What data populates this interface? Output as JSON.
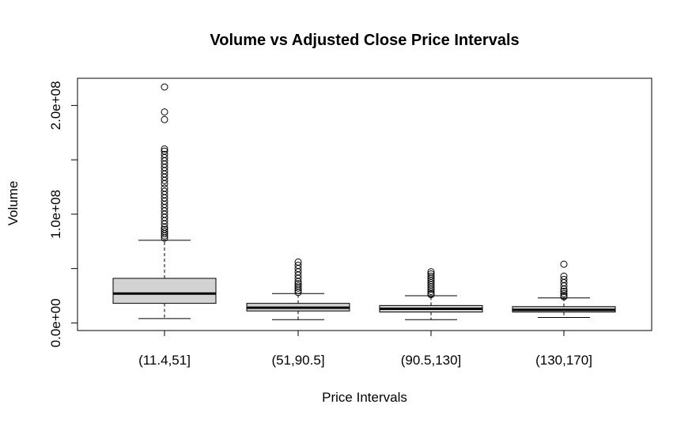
{
  "chart_data": {
    "type": "boxplot",
    "title": "Volume vs Adjusted Close Price Intervals",
    "xlabel": "Price Intervals",
    "ylabel": "Volume",
    "categories": [
      "(11.4,51]",
      "(51,90.5]",
      "(90.5,130]",
      "(130,170]"
    ],
    "y_ticks": [
      0,
      100000000,
      200000000
    ],
    "y_tick_labels": [
      "0.0e+00",
      "1.0e+08",
      "2.0e+08"
    ],
    "y_minor_ticks": [
      50000000,
      150000000
    ],
    "ylim": [
      -7000000,
      225000000
    ],
    "grid": false,
    "legend": "none",
    "colors": {
      "box_fill": "#d3d3d3",
      "stroke": "#000000"
    },
    "boxes": [
      {
        "category": "(11.4,51]",
        "whisker_low": 4000000,
        "q1": 18000000,
        "median": 27000000,
        "q3": 41000000,
        "whisker_high": 76000000,
        "outliers": [
          217000000,
          194000000,
          187000000,
          160000000,
          158000000,
          155000000,
          152000000,
          149000000,
          146000000,
          143000000,
          140000000,
          137000000,
          134000000,
          131000000,
          128000000,
          124000000,
          121000000,
          118000000,
          115000000,
          112000000,
          109000000,
          106000000,
          103000000,
          100000000,
          97000000,
          94000000,
          91000000,
          88000000,
          86000000,
          84000000,
          82000000,
          80000000,
          78000000
        ]
      },
      {
        "category": "(51,90.5]",
        "whisker_low": 3000000,
        "q1": 11000000,
        "median": 14000000,
        "q3": 18000000,
        "whisker_high": 27000000,
        "outliers": [
          56000000,
          53000000,
          50000000,
          47000000,
          44000000,
          41000000,
          38000000,
          36000000,
          34000000,
          32000000,
          30000000,
          28000000
        ]
      },
      {
        "category": "(90.5,130]",
        "whisker_low": 3000000,
        "q1": 10000000,
        "median": 13000000,
        "q3": 16000000,
        "whisker_high": 25000000,
        "outliers": [
          47000000,
          45000000,
          43000000,
          41000000,
          39000000,
          37000000,
          35000000,
          33000000,
          31000000,
          29000000,
          27000000,
          26000000
        ]
      },
      {
        "category": "(130,170]",
        "whisker_low": 5000000,
        "q1": 10000000,
        "median": 12000000,
        "q3": 15000000,
        "whisker_high": 23000000,
        "outliers": [
          54000000,
          43000000,
          40000000,
          37000000,
          34000000,
          31000000,
          29000000,
          27000000,
          25000000,
          24000000
        ]
      }
    ]
  }
}
